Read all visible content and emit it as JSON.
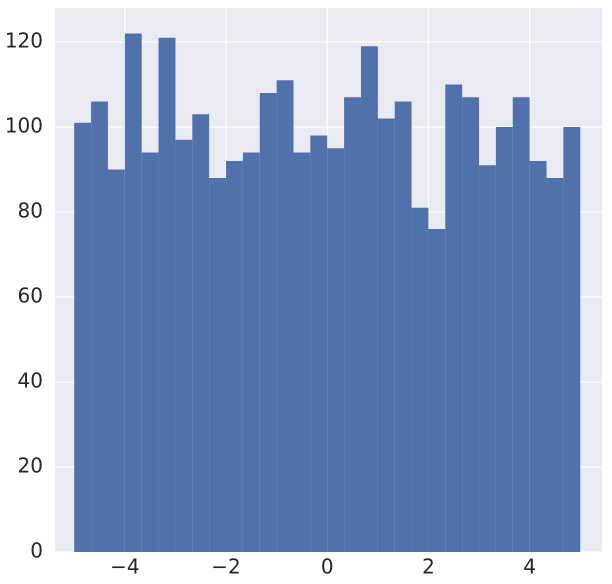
{
  "chart_data": {
    "type": "histogram",
    "bins": [
      -5,
      -4.666666666666667,
      -4.333333333333333,
      -4,
      -3.6666666666666665,
      -3.3333333333333335,
      -3,
      -2.6666666666666665,
      -2.3333333333333335,
      -2,
      -1.6666666666666667,
      -1.3333333333333333,
      -1,
      -0.6666666666666666,
      -0.3333333333333333,
      0,
      0.3333333333333333,
      0.6666666666666666,
      1,
      1.3333333333333333,
      1.6666666666666667,
      2,
      2.3333333333333335,
      2.6666666666666665,
      3,
      3.3333333333333335,
      3.6666666666666665,
      4,
      4.333333333333333,
      4.666666666666667,
      5
    ],
    "values": [
      101,
      106,
      90,
      122,
      94,
      121,
      97,
      103,
      88,
      92,
      94,
      108,
      111,
      94,
      98,
      95,
      107,
      119,
      102,
      106,
      81,
      76,
      110,
      107,
      91,
      100,
      107,
      92,
      88,
      100
    ],
    "color": "#5071ab",
    "xlim": [
      -5.38,
      5.43
    ],
    "ylim": [
      0,
      128
    ],
    "xticks": [
      {
        "value": -4,
        "label": "−4"
      },
      {
        "value": -2,
        "label": "−2"
      },
      0,
      2,
      4
    ],
    "yticks": [
      0,
      20,
      40,
      60,
      80,
      100,
      120
    ],
    "grid": true
  }
}
